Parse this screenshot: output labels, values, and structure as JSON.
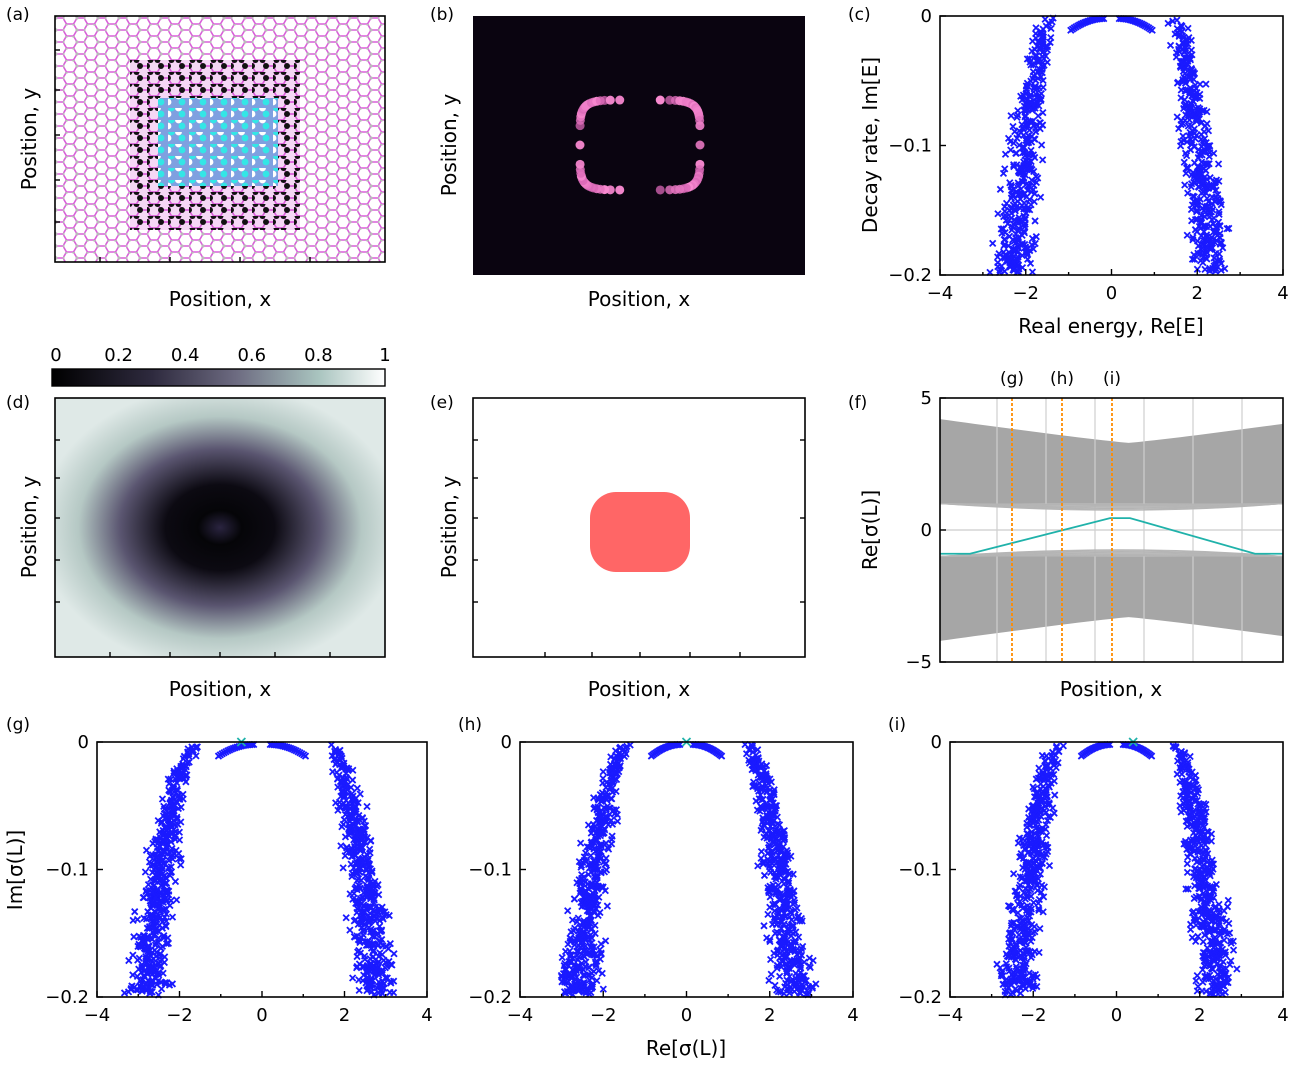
{
  "panel_labels": [
    "(a)",
    "(b)",
    "(c)",
    "(d)",
    "(e)",
    "(f)",
    "(g)",
    "(h)",
    "(i)"
  ],
  "axis_labels": {
    "position_x": "Position, x",
    "position_y": "Position, y",
    "decay_rate": "Decay rate, Im[E]",
    "real_energy": "Real energy, Re[E]",
    "re_sigma": "Re[σ(L)]",
    "im_sigma": "Im[σ(L)]"
  },
  "colorbar": {
    "ticks": [
      "0",
      "0.2",
      "0.4",
      "0.6",
      "0.8",
      "1"
    ]
  },
  "colors": {
    "scatter": "#1a1aff",
    "marker_highlight": "#20b2aa",
    "lattice_bond": "#d95fd9",
    "lattice_region": "#111111",
    "lattice_center": "#33e6e6",
    "region_fill": "#ff6666",
    "band_gray": "#a6a6a6",
    "cut_line": "#ff8c00",
    "teal_curve": "#20b2aa"
  },
  "chart_data": [
    {
      "panel": "(a)",
      "type": "heatmap",
      "description_shown": "honeycomb lattice",
      "xlabel": "Position, x",
      "ylabel": "Position, y"
    },
    {
      "panel": "(b)",
      "type": "heatmap",
      "xlabel": "Position, x",
      "ylabel": "Position, y"
    },
    {
      "panel": "(c)",
      "type": "scatter",
      "xlabel": "Real energy, Re[E]",
      "ylabel": "Decay rate, Im[E]",
      "xlim": [
        -4,
        4
      ],
      "ylim": [
        -0.2,
        0
      ],
      "xticks": [
        "−4",
        "−2",
        "0",
        "2",
        "4"
      ],
      "yticks": [
        "0",
        "−0.1",
        "−0.2"
      ]
    },
    {
      "panel": "(d)",
      "type": "heatmap",
      "xlabel": "Position, x",
      "ylabel": "Position, y",
      "clim": [
        0,
        1
      ]
    },
    {
      "panel": "(e)",
      "type": "heatmap",
      "xlabel": "Position, x",
      "ylabel": "Position, y"
    },
    {
      "panel": "(f)",
      "type": "line",
      "xlabel": "Position, x",
      "ylabel": "Re[σ(L)]",
      "ylim": [
        -5,
        5
      ],
      "yticks": [
        "5",
        "0",
        "−5"
      ],
      "cut_labels": [
        "(g)",
        "(h)",
        "(i)"
      ],
      "band_edges": {
        "upper_at_edge": 4.2,
        "upper_at_center": 3.3,
        "lower_at_edge": -4.2,
        "lower_at_center": -3.3,
        "gap_upper_edge": 1.0,
        "gap_lower_edge": -1.0
      },
      "teal_line": {
        "edge_value": -0.9,
        "peak_value": 0.45
      }
    },
    {
      "panel": "(g)",
      "type": "scatter",
      "ylabel": "Im[σ(L)]",
      "xlim": [
        -4,
        4
      ],
      "ylim": [
        -0.2,
        0
      ],
      "xticks": [
        "−4",
        "−2",
        "0",
        "2",
        "4"
      ],
      "yticks": [
        "0",
        "−0.1",
        "−0.2"
      ],
      "highlight_point": [
        -0.5,
        0
      ]
    },
    {
      "panel": "(h)",
      "type": "scatter",
      "xlabel": "Re[σ(L)]",
      "xlim": [
        -4,
        4
      ],
      "ylim": [
        -0.2,
        0
      ],
      "xticks": [
        "−4",
        "−2",
        "0",
        "2",
        "4"
      ],
      "yticks": [
        "0",
        "−0.1",
        "−0.2"
      ],
      "highlight_point": [
        0,
        0
      ]
    },
    {
      "panel": "(i)",
      "type": "scatter",
      "xlim": [
        -4,
        4
      ],
      "ylim": [
        -0.2,
        0
      ],
      "xticks": [
        "−4",
        "−2",
        "0",
        "2",
        "4"
      ],
      "yticks": [
        "0",
        "−0.1",
        "−0.2"
      ],
      "highlight_point": [
        0.4,
        0
      ]
    }
  ]
}
